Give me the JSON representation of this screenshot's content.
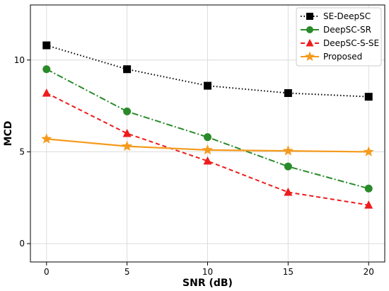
{
  "chart_data": {
    "type": "line",
    "title": "",
    "xlabel": "SNR (dB)",
    "ylabel": "MCD",
    "x": [
      0,
      5,
      10,
      15,
      20
    ],
    "xlim": [
      -1,
      21
    ],
    "ylim": [
      -1,
      13
    ],
    "xticks": [
      0,
      5,
      10,
      15,
      20
    ],
    "yticks": [
      0,
      5,
      10
    ],
    "grid": true,
    "legend_position": "top-right",
    "series": [
      {
        "name": "SE-DeepSC",
        "values": [
          10.8,
          9.5,
          8.6,
          8.2,
          8.0
        ],
        "color": "#000000",
        "line_style": "dotted",
        "marker": "square"
      },
      {
        "name": "DeepSC-SR",
        "values": [
          9.5,
          7.2,
          5.8,
          4.2,
          3.0
        ],
        "color": "#2a8a2a",
        "line_style": "dashdot",
        "marker": "circle"
      },
      {
        "name": "DeepSC-S-SE",
        "values": [
          8.2,
          6.0,
          4.5,
          2.8,
          2.1
        ],
        "color": "#ee1c1c",
        "line_style": "dashed",
        "marker": "triangle"
      },
      {
        "name": "Proposed",
        "values": [
          5.7,
          5.3,
          5.1,
          5.05,
          5.0
        ],
        "color": "#f59a1c",
        "line_style": "solid",
        "marker": "star"
      }
    ]
  }
}
